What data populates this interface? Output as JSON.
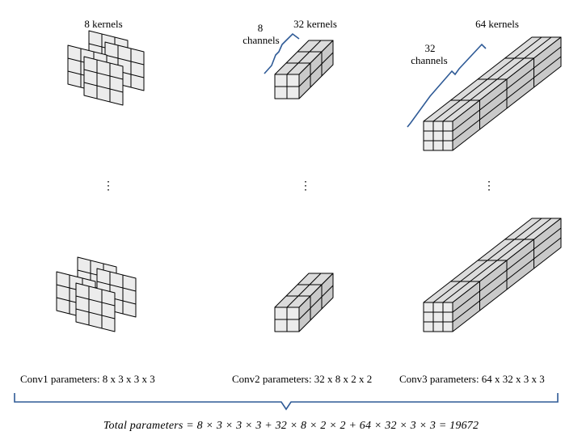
{
  "labels": {
    "conv1_kernels": "8 kernels",
    "conv2_kernels": "32 kernels",
    "conv3_kernels": "64 kernels",
    "conv2_channels_num": "8",
    "conv2_channels_word": "channels",
    "conv3_channels_num": "32",
    "conv3_channels_word": "channels"
  },
  "continuation": {
    "col1": "⋮",
    "col2": "⋮",
    "col3": "⋮"
  },
  "parameters": {
    "conv1": "Conv1 parameters: 8 x 3 x 3 x 3",
    "conv2": "Conv2 parameters: 32 x 8 x 2 x 2",
    "conv3": "Conv3 parameters: 64 x 32 x 3 x 3"
  },
  "total": "Total parameters = 8 × 3 × 3 × 3 + 32 × 8 × 2 × 2 + 64 × 32 × 3 × 3 = 19672",
  "colors": {
    "bracket": "#2e5a96",
    "face_front": "#ececec",
    "face_top": "#dcdcdc",
    "face_side": "#c9c9c9",
    "stroke": "#000000"
  },
  "icons": [
    "kernel-stack-icon",
    "prism-icon",
    "curly-brace-icon"
  ]
}
